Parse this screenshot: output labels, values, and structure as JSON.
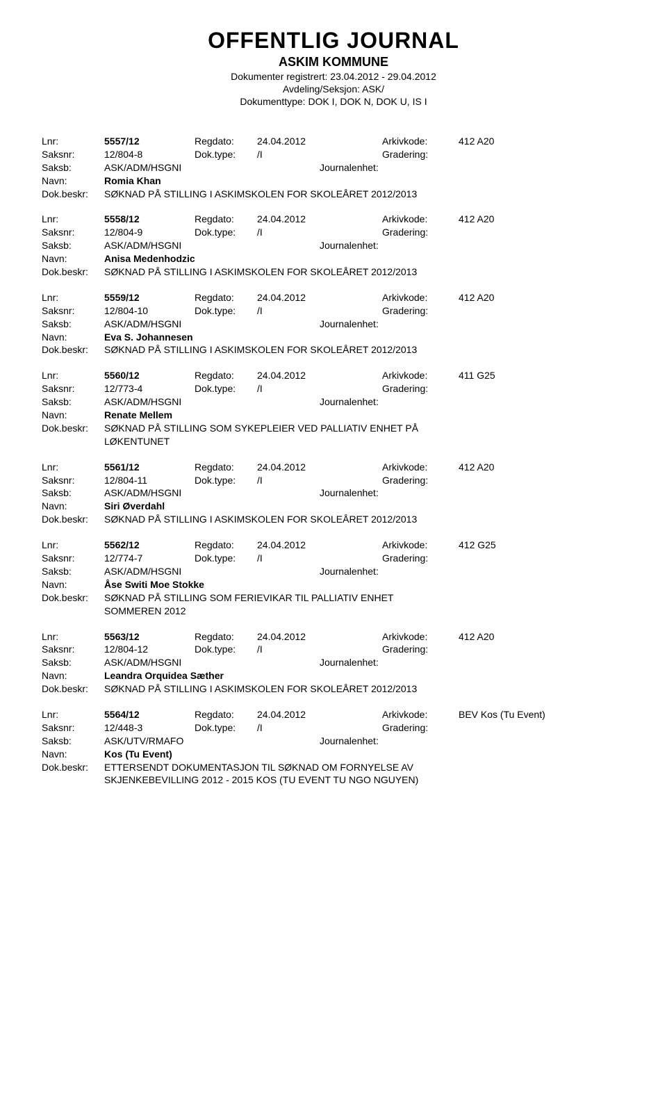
{
  "header": {
    "main_title": "OFFENTLIG JOURNAL",
    "sub_title": "ASKIM KOMMUNE",
    "line1": "Dokumenter registrert: 23.04.2012 - 29.04.2012",
    "line2": "Avdeling/Seksjon: ASK/",
    "line3": "Dokumenttype: DOK I, DOK N, DOK U, IS I"
  },
  "labels": {
    "lnr": "Lnr:",
    "regdato": "Regdato:",
    "arkivkode": "Arkivkode:",
    "saksnr": "Saksnr:",
    "doktype": "Dok.type:",
    "gradering": "Gradering:",
    "saksb": "Saksb:",
    "journalenhet": "Journalenhet:",
    "navn": "Navn:",
    "dokbeskr": "Dok.beskr:"
  },
  "entries": [
    {
      "lnr": "5557/12",
      "regdato": "24.04.2012",
      "arkivkode": "412 A20",
      "saksnr": "12/804-8",
      "doktype": "/I",
      "gradering": "",
      "saksb": "ASK/ADM/HSGNI",
      "journalenhet": "",
      "navn": "Romia Khan",
      "beskr": "SØKNAD PÅ STILLING I ASKIMSKOLEN FOR SKOLEÅRET 2012/2013"
    },
    {
      "lnr": "5558/12",
      "regdato": "24.04.2012",
      "arkivkode": "412 A20",
      "saksnr": "12/804-9",
      "doktype": "/I",
      "gradering": "",
      "saksb": "ASK/ADM/HSGNI",
      "journalenhet": "",
      "navn": "Anisa Medenhodzic",
      "beskr": "SØKNAD PÅ STILLING I ASKIMSKOLEN FOR SKOLEÅRET 2012/2013"
    },
    {
      "lnr": "5559/12",
      "regdato": "24.04.2012",
      "arkivkode": "412 A20",
      "saksnr": "12/804-10",
      "doktype": "/I",
      "gradering": "",
      "saksb": "ASK/ADM/HSGNI",
      "journalenhet": "",
      "navn": "Eva S. Johannesen",
      "beskr": "SØKNAD PÅ STILLING I ASKIMSKOLEN FOR SKOLEÅRET 2012/2013"
    },
    {
      "lnr": "5560/12",
      "regdato": "24.04.2012",
      "arkivkode": "411 G25",
      "saksnr": "12/773-4",
      "doktype": "/I",
      "gradering": "",
      "saksb": "ASK/ADM/HSGNI",
      "journalenhet": "",
      "navn": "Renate Mellem",
      "beskr": "SØKNAD PÅ STILLING SOM SYKEPLEIER VED PALLIATIV ENHET PÅ",
      "beskr2": "LØKENTUNET"
    },
    {
      "lnr": "5561/12",
      "regdato": "24.04.2012",
      "arkivkode": "412 A20",
      "saksnr": "12/804-11",
      "doktype": "/I",
      "gradering": "",
      "saksb": "ASK/ADM/HSGNI",
      "journalenhet": "",
      "navn": "Siri Øverdahl",
      "beskr": "SØKNAD PÅ STILLING I ASKIMSKOLEN FOR SKOLEÅRET 2012/2013"
    },
    {
      "lnr": "5562/12",
      "regdato": "24.04.2012",
      "arkivkode": "412 G25",
      "saksnr": "12/774-7",
      "doktype": "/I",
      "gradering": "",
      "saksb": "ASK/ADM/HSGNI",
      "journalenhet": "",
      "navn": "Åse Switi Moe Stokke",
      "beskr": "SØKNAD PÅ STILLING SOM FERIEVIKAR TIL PALLIATIV ENHET",
      "beskr2": "SOMMEREN 2012"
    },
    {
      "lnr": "5563/12",
      "regdato": "24.04.2012",
      "arkivkode": "412 A20",
      "saksnr": "12/804-12",
      "doktype": "/I",
      "gradering": "",
      "saksb": "ASK/ADM/HSGNI",
      "journalenhet": "",
      "navn": "Leandra Orquidea Sæther",
      "beskr": "SØKNAD PÅ STILLING I ASKIMSKOLEN FOR SKOLEÅRET 2012/2013"
    },
    {
      "lnr": "5564/12",
      "regdato": "24.04.2012",
      "arkivkode": "BEV Kos (Tu Event)",
      "saksnr": "12/448-3",
      "doktype": "/I",
      "gradering": "",
      "saksb": "ASK/UTV/RMAFO",
      "journalenhet": "",
      "navn": "Kos (Tu Event)",
      "beskr": "ETTERSENDT DOKUMENTASJON TIL SØKNAD OM FORNYELSE AV",
      "beskr2": "SKJENKEBEVILLING 2012 - 2015 KOS (TU EVENT TU NGO NGUYEN)"
    }
  ]
}
